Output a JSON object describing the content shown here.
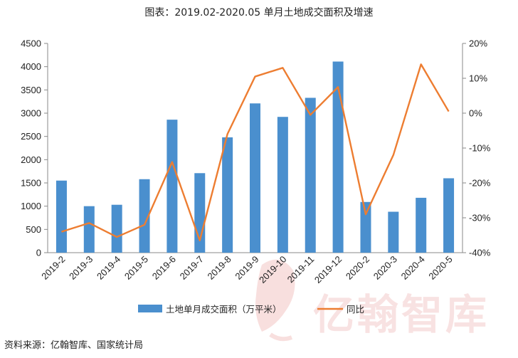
{
  "title": "图表：2019.02-2020.05 单月土地成交面积及增速",
  "source": "资料来源：亿翰智库、国家统计局",
  "watermark": {
    "text": "亿翰智库",
    "seal_text": "亿翰"
  },
  "colors": {
    "bar": "#4a8fce",
    "line": "#ed7d31",
    "axis": "#888888",
    "watermark": "#d9534f"
  },
  "chart_data": {
    "type": "bar",
    "title": "图表：2019.02-2020.05 单月土地成交面积及增速",
    "categories": [
      "2019-2",
      "2019-3",
      "2019-4",
      "2019-5",
      "2019-6",
      "2019-7",
      "2019-8",
      "2019-9",
      "2019-10",
      "2019-11",
      "2019-12",
      "2020-2",
      "2020-3",
      "2020-4",
      "2020-5"
    ],
    "series": [
      {
        "name": "土地单月成交面积（万平米）",
        "type": "bar",
        "axis": "left",
        "values": [
          1550,
          1000,
          1030,
          1580,
          2860,
          1710,
          2480,
          3210,
          2920,
          3330,
          4110,
          1090,
          880,
          1180,
          1600
        ]
      },
      {
        "name": "同比",
        "type": "line",
        "axis": "right",
        "unit": "%",
        "values": [
          -34,
          -31.5,
          -35.5,
          -32,
          -14,
          -36.5,
          -6,
          10.5,
          13,
          -0.5,
          7.5,
          -29,
          -12,
          14,
          0.5
        ]
      }
    ],
    "y_left": {
      "min": 0,
      "max": 4500,
      "ticks": [
        0,
        500,
        1000,
        1500,
        2000,
        2500,
        3000,
        3500,
        4000,
        4500
      ]
    },
    "y_right": {
      "min": -40,
      "max": 20,
      "ticks": [
        "-40%",
        "-30%",
        "-20%",
        "-10%",
        "0%",
        "10%",
        "20%"
      ]
    },
    "grid": false,
    "legend": "bottom"
  }
}
